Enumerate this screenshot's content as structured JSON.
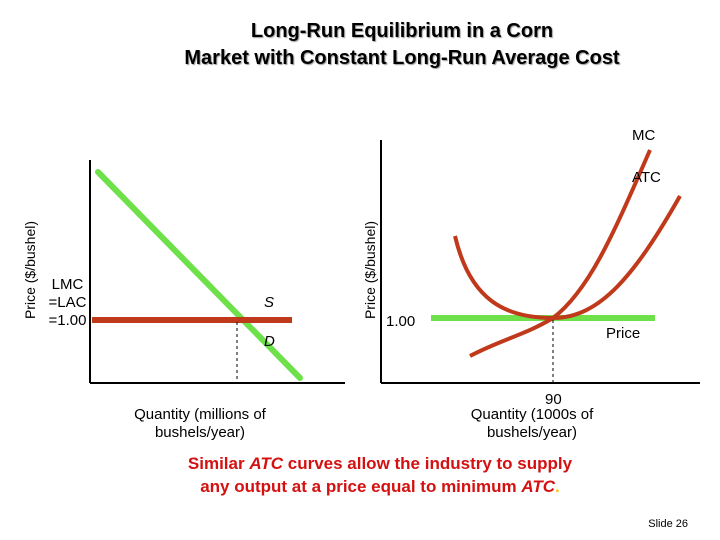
{
  "title_line1": "Long-Run Equilibrium in a Corn",
  "title_line2": "Market with Constant Long-Run Average Cost",
  "left_graph": {
    "y_axis_label": "Price ($/bushel)",
    "lmc_line1": "LMC",
    "lmc_line2": "=LAC",
    "lmc_line3": "=1.00",
    "supply_label": "S",
    "demand_label": "D",
    "x_axis_label_line1": "Quantity (millions of",
    "x_axis_label_line2": "bushels/year)"
  },
  "right_graph": {
    "y_axis_label": "Price ($/bushel)",
    "mc_label": "MC",
    "atc_label": "ATC",
    "price_value": "1.00",
    "price_label": "Price",
    "quantity_value": "90",
    "x_axis_label_line1": "Quantity (1000s of",
    "x_axis_label_line2": "bushels/year)"
  },
  "caption": {
    "part1": "Similar ",
    "atc1": "ATC",
    "part2": " curves allow the industry to supply",
    "part3": "any output at a price equal to minimum ",
    "atc2": "ATC",
    "period": "."
  },
  "slide_number": "Slide 26",
  "colors": {
    "green_curve": "#6ee04a",
    "red_curve": "#c0391b",
    "caption": "#d41010",
    "axis": "#000000"
  }
}
